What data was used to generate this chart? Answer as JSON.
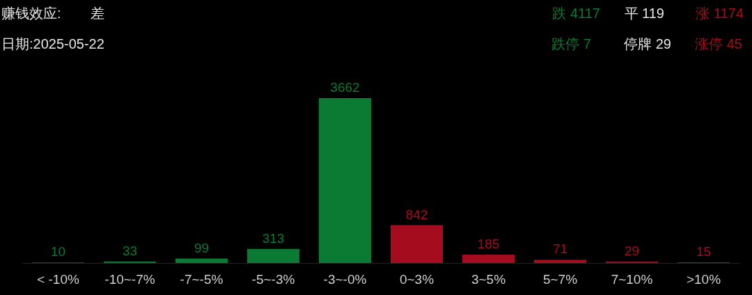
{
  "chart_data": {
    "type": "bar",
    "categories": [
      "< -10%",
      "-10~-7%",
      "-7~-5%",
      "-5~-3%",
      "-3~-0%",
      "0~3%",
      "3~5%",
      "5~7%",
      "7~10%",
      ">10%"
    ],
    "values": [
      10,
      33,
      99,
      313,
      3662,
      842,
      185,
      71,
      29,
      15
    ],
    "colors": [
      "#0b7a32",
      "#0b7a32",
      "#0b7a32",
      "#0b7a32",
      "#0b7a32",
      "#a50d1f",
      "#a50d1f",
      "#a50d1f",
      "#a50d1f",
      "#a50d1f"
    ],
    "data_labels": true,
    "annotations": [
      "赚钱效应:",
      "差",
      "日期:2025-05-22",
      "跌 4117",
      "平 119",
      "涨 1174",
      "跌停 7",
      "停牌 29",
      "涨停 45"
    ]
  }
}
